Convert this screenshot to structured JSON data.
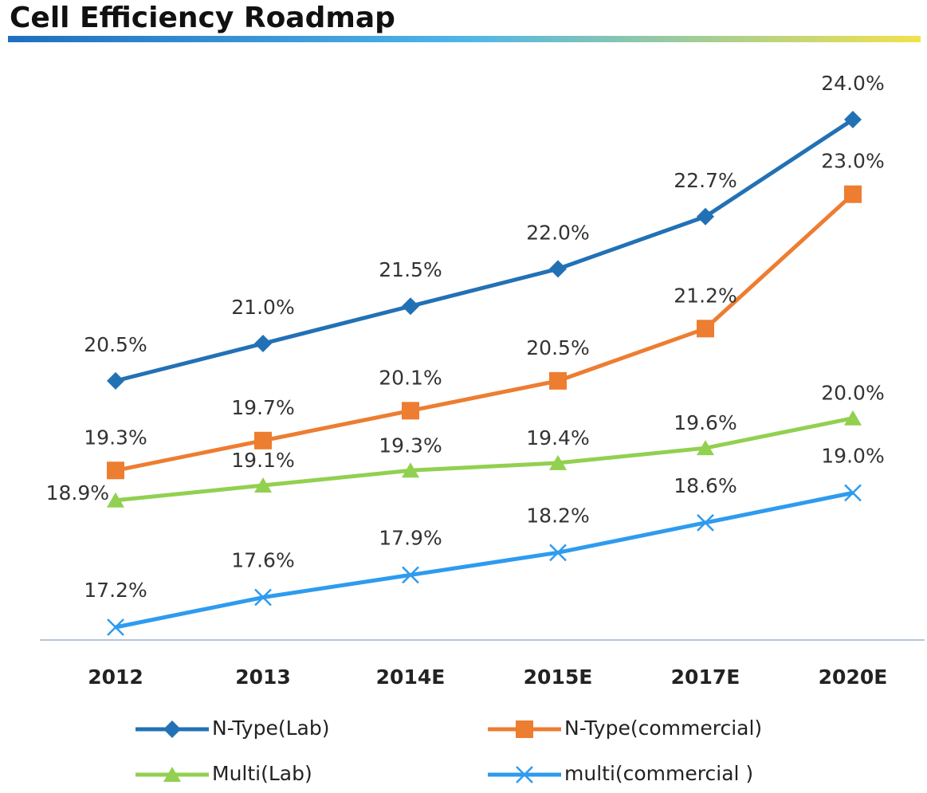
{
  "chart_data": {
    "type": "line",
    "title": "Cell Efficiency Roadmap",
    "categories": [
      "2012",
      "2013",
      "2014E",
      "2015E",
      "2017E",
      "2020E"
    ],
    "series": [
      {
        "name": "N-Type(Lab)",
        "color": "#2271b5",
        "marker": "diamond",
        "values": [
          20.5,
          21.0,
          21.5,
          22.0,
          22.7,
          24.0
        ],
        "value_labels": [
          "20.5%",
          "21.0%",
          "21.5%",
          "22.0%",
          "22.7%",
          "24.0%"
        ]
      },
      {
        "name": "N-Type(commercial)",
        "color": "#ed7d31",
        "marker": "square",
        "values": [
          19.3,
          19.7,
          20.1,
          20.5,
          21.2,
          23.0
        ],
        "value_labels": [
          "19.3%",
          "19.7%",
          "20.1%",
          "20.5%",
          "21.2%",
          "23.0%"
        ]
      },
      {
        "name": "Multi(Lab)",
        "color": "#92d050",
        "marker": "triangle",
        "values": [
          18.9,
          19.1,
          19.3,
          19.4,
          19.6,
          20.0
        ],
        "value_labels": [
          "18.9%",
          "19.1%",
          "19.3%",
          "19.4%",
          "19.6%",
          "20.0%"
        ]
      },
      {
        "name": "multi(commercial )",
        "color": "#2e9bef",
        "marker": "x",
        "values": [
          17.2,
          17.6,
          17.9,
          18.2,
          18.6,
          19.0
        ],
        "value_labels": [
          "17.2%",
          "17.6%",
          "17.9%",
          "18.2%",
          "18.6%",
          "19.0%"
        ]
      }
    ]
  }
}
